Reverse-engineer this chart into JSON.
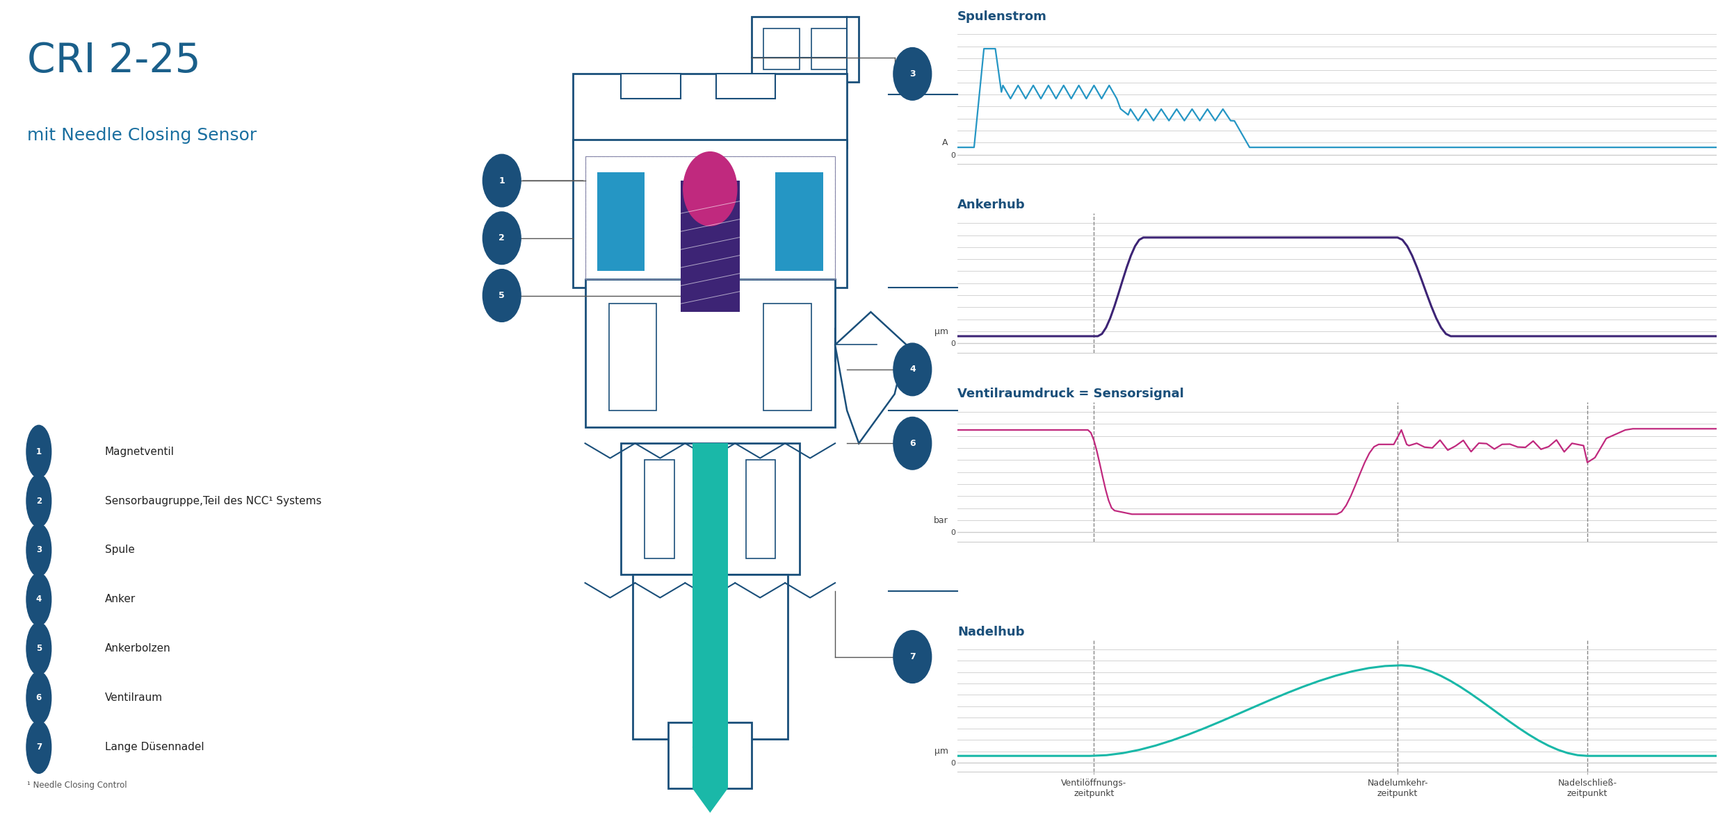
{
  "title": "CRI 2-25",
  "subtitle": "mit Needle Closing Sensor",
  "bg_color": "#ffffff",
  "title_color": "#1a5f8a",
  "subtitle_color": "#1a6fa0",
  "badge_color": "#1a4f7a",
  "chart_line_spulenstrom": "#2596c4",
  "chart_line_ankerhub": "#3d2475",
  "chart_line_ventil": "#c0297e",
  "chart_line_nadel": "#1ab8a8",
  "grid_color": "#cccccc",
  "dashed_color": "#888888",
  "injector_color": "#1a4f7a",
  "injector_light": "#4a8fbf",
  "teal_color": "#1ab8a8",
  "pink_color": "#c0297e",
  "blue_fill": "#2596c4",
  "purple_fill": "#3d2475",
  "annotations": [
    {
      "num": "1",
      "label": "Magnetventil"
    },
    {
      "num": "2",
      "label": "Sensorbaugruppe,Teil des NCC¹ Systems"
    },
    {
      "num": "3",
      "label": "Spule"
    },
    {
      "num": "4",
      "label": "Anker"
    },
    {
      "num": "5",
      "label": "Ankerbolzen"
    },
    {
      "num": "6",
      "label": "Ventilraum"
    },
    {
      "num": "7",
      "label": "Lange Düsennadel"
    }
  ],
  "footnote": "¹ Needle Closing Control",
  "chart_titles": [
    "Spulenstrom",
    "Ankerhub",
    "Ventilraumdruck = Sensorsignal",
    "Nadelhub"
  ],
  "x_labels": [
    "Ventilöffnungs-\nzeitpunkt",
    "Nadelumkehr-\nzeitpunkt",
    "Nadelschließ-\nzeitpunkt"
  ]
}
